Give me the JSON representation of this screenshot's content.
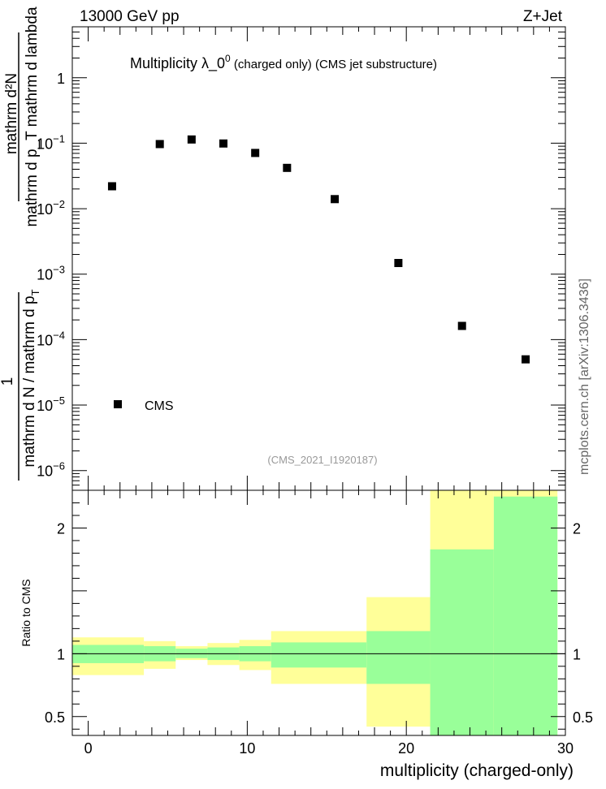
{
  "header": {
    "energy_label": "13000 GeV pp",
    "process_label": "Z+Jet"
  },
  "chart_data": [
    {
      "type": "scatter",
      "title": "Multiplicity  λ_0",
      "title_superscript": "0",
      "title_suffix": " (charged only) (CMS jet substructure)",
      "ylabel_numerator": "mathrm d²N",
      "ylabel_denominator": "mathrm d p_T mathrm d lambda",
      "ylabel_lower": "mathrm d N / mathrm d p",
      "ylabel_lower_sub": "T",
      "ylabel_prefix": "1",
      "yscale": "log",
      "xlim": [
        -1,
        30
      ],
      "ylim": [
        5e-07,
        6
      ],
      "yticks": [
        {
          "value": 1,
          "label": "1"
        },
        {
          "value": 0.1,
          "base": "10",
          "exp": "−1"
        },
        {
          "value": 0.01,
          "base": "10",
          "exp": "−2"
        },
        {
          "value": 0.001,
          "base": "10",
          "exp": "−3"
        },
        {
          "value": 0.0001,
          "base": "10",
          "exp": "−4"
        },
        {
          "value": 1e-05,
          "base": "10",
          "exp": "−5"
        },
        {
          "value": 1e-06,
          "base": "10",
          "exp": "−6"
        }
      ],
      "series": [
        {
          "name": "CMS",
          "color": "#000000",
          "x": [
            1.5,
            4.5,
            6.5,
            8.5,
            10.5,
            12.5,
            15.5,
            19.5,
            23.5,
            27.5
          ],
          "y": [
            0.022,
            0.097,
            0.114,
            0.099,
            0.071,
            0.042,
            0.014,
            0.00148,
            0.000162,
            5e-05
          ]
        }
      ],
      "legend": "left",
      "watermark": "(CMS_2021_I1920187)"
    },
    {
      "type": "area",
      "ylabel": "Ratio to CMS",
      "xlabel": "multiplicity (charged-only)",
      "xlim": [
        -1,
        30
      ],
      "ylim": [
        0.35,
        2.3
      ],
      "xticks": [
        0,
        10,
        20,
        30
      ],
      "yticks": [
        0.5,
        1,
        2
      ],
      "reference_line": 1,
      "bins": [
        {
          "x0": -1,
          "x1": 3.5,
          "inner_lo": 0.925,
          "inner_hi": 1.07,
          "outer_lo": 0.83,
          "outer_hi": 1.13
        },
        {
          "x0": 3.5,
          "x1": 5.5,
          "inner_lo": 0.94,
          "inner_hi": 1.06,
          "outer_lo": 0.88,
          "outer_hi": 1.1
        },
        {
          "x0": 5.5,
          "x1": 7.5,
          "inner_lo": 0.965,
          "inner_hi": 1.04,
          "outer_lo": 0.95,
          "outer_hi": 1.06
        },
        {
          "x0": 7.5,
          "x1": 9.5,
          "inner_lo": 0.95,
          "inner_hi": 1.05,
          "outer_lo": 0.91,
          "outer_hi": 1.085
        },
        {
          "x0": 9.5,
          "x1": 11.5,
          "inner_lo": 0.94,
          "inner_hi": 1.06,
          "outer_lo": 0.87,
          "outer_hi": 1.11
        },
        {
          "x0": 11.5,
          "x1": 17.5,
          "inner_lo": 0.89,
          "inner_hi": 1.09,
          "outer_lo": 0.76,
          "outer_hi": 1.18
        },
        {
          "x0": 17.5,
          "x1": 21.5,
          "inner_lo": 0.76,
          "inner_hi": 1.18,
          "outer_lo": 0.42,
          "outer_hi": 1.45
        },
        {
          "x0": 21.5,
          "x1": 25.5,
          "inner_lo": 0.35,
          "inner_hi": 1.83,
          "outer_lo": 0.35,
          "outer_hi": 2.3
        },
        {
          "x0": 25.5,
          "x1": 29.5,
          "inner_lo": 0.35,
          "inner_hi": 2.25,
          "outer_lo": 0.35,
          "outer_hi": 2.3
        }
      ],
      "inner_color": "#99ff99",
      "outer_color": "#ffff99"
    }
  ],
  "side_label": "mcplots.cern.ch [arXiv:1306.3436]"
}
